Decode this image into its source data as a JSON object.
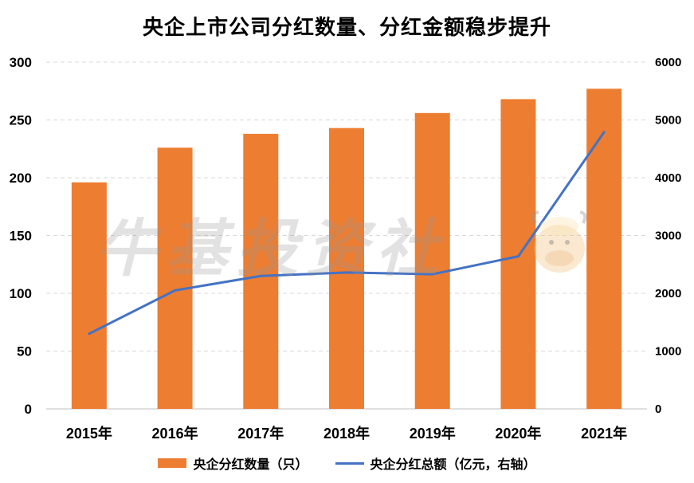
{
  "title": "央企上市公司分红数量、分红金额稳步提升",
  "watermark_text": "牛基投资社",
  "chart_data": {
    "type": "bar+line",
    "categories": [
      "2015年",
      "2016年",
      "2017年",
      "2018年",
      "2019年",
      "2020年",
      "2021年"
    ],
    "series": [
      {
        "name": "央企分红数量（只）",
        "type": "bar",
        "axis": "left",
        "color": "#ed7d31",
        "values": [
          196,
          226,
          238,
          243,
          256,
          268,
          277
        ]
      },
      {
        "name": "央企分红总额（亿元，右轴）",
        "type": "line",
        "axis": "right",
        "color": "#4472c4",
        "values": [
          1300,
          2050,
          2300,
          2360,
          2330,
          2640,
          4790
        ]
      }
    ],
    "y_left": {
      "min": 0,
      "max": 300,
      "ticks": [
        0,
        50,
        100,
        150,
        200,
        250,
        300
      ]
    },
    "y_right": {
      "min": 0,
      "max": 6000,
      "ticks": [
        0,
        1000,
        2000,
        3000,
        4000,
        5000,
        6000
      ]
    },
    "grid": true,
    "legend_position": "bottom"
  }
}
